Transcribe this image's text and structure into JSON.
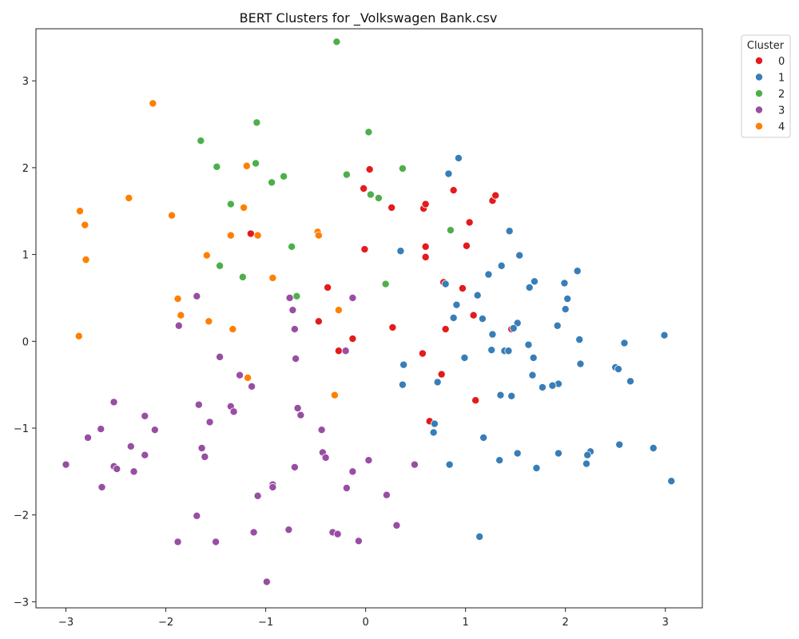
{
  "chart_data": {
    "type": "scatter",
    "title": "BERT Clusters for _Volkswagen Bank.csv",
    "xlabel": "",
    "ylabel": "",
    "xlim": [
      -3.3,
      3.37
    ],
    "ylim": [
      -3.07,
      3.6
    ],
    "xticks": [
      -3,
      -2,
      -1,
      0,
      1,
      2,
      3
    ],
    "yticks": [
      -3,
      -2,
      -1,
      0,
      1,
      2,
      3
    ],
    "tick_labels_x": [
      "−3",
      "−2",
      "−1",
      "0",
      "1",
      "2",
      "3"
    ],
    "tick_labels_y": [
      "−3",
      "−2",
      "−1",
      "0",
      "1",
      "2",
      "3"
    ],
    "grid": false,
    "legend": {
      "title": "Cluster",
      "placement": "outside-top-right"
    },
    "series": [
      {
        "name": "0",
        "color": "#e41a1c",
        "points": [
          [
            0.04,
            1.98
          ],
          [
            -0.02,
            1.76
          ],
          [
            0.26,
            1.54
          ],
          [
            0.58,
            1.53
          ],
          [
            0.6,
            1.58
          ],
          [
            0.88,
            1.74
          ],
          [
            1.27,
            1.62
          ],
          [
            1.3,
            1.68
          ],
          [
            1.04,
            1.37
          ],
          [
            0.6,
            1.09
          ],
          [
            0.6,
            0.97
          ],
          [
            1.01,
            1.1
          ],
          [
            -0.01,
            1.06
          ],
          [
            -1.15,
            1.24
          ],
          [
            -0.38,
            0.62
          ],
          [
            0.78,
            0.68
          ],
          [
            0.97,
            0.61
          ],
          [
            1.08,
            0.3
          ],
          [
            -0.47,
            0.23
          ],
          [
            0.27,
            0.16
          ],
          [
            0.8,
            0.14
          ],
          [
            1.46,
            0.14
          ],
          [
            -0.13,
            0.03
          ],
          [
            -0.27,
            -0.11
          ],
          [
            0.57,
            -0.14
          ],
          [
            0.76,
            -0.38
          ],
          [
            1.1,
            -0.68
          ],
          [
            0.64,
            -0.92
          ]
        ]
      },
      {
        "name": "1",
        "color": "#377eb8",
        "points": [
          [
            0.93,
            2.11
          ],
          [
            0.83,
            1.93
          ],
          [
            1.44,
            1.27
          ],
          [
            0.35,
            1.04
          ],
          [
            1.54,
            0.99
          ],
          [
            1.36,
            0.87
          ],
          [
            1.23,
            0.77
          ],
          [
            2.12,
            0.81
          ],
          [
            1.69,
            0.69
          ],
          [
            1.99,
            0.67
          ],
          [
            1.64,
            0.62
          ],
          [
            0.8,
            0.66
          ],
          [
            1.12,
            0.53
          ],
          [
            2.02,
            0.49
          ],
          [
            0.91,
            0.42
          ],
          [
            2.0,
            0.37
          ],
          [
            0.88,
            0.27
          ],
          [
            1.17,
            0.26
          ],
          [
            1.52,
            0.21
          ],
          [
            1.92,
            0.18
          ],
          [
            1.48,
            0.15
          ],
          [
            1.27,
            0.08
          ],
          [
            2.14,
            0.02
          ],
          [
            2.99,
            0.07
          ],
          [
            2.59,
            -0.02
          ],
          [
            1.63,
            -0.04
          ],
          [
            1.26,
            -0.1
          ],
          [
            1.39,
            -0.11
          ],
          [
            1.43,
            -0.11
          ],
          [
            0.99,
            -0.19
          ],
          [
            1.68,
            -0.19
          ],
          [
            2.15,
            -0.26
          ],
          [
            0.38,
            -0.27
          ],
          [
            2.5,
            -0.3
          ],
          [
            2.53,
            -0.32
          ],
          [
            1.67,
            -0.39
          ],
          [
            2.65,
            -0.46
          ],
          [
            0.72,
            -0.47
          ],
          [
            1.93,
            -0.49
          ],
          [
            1.87,
            -0.51
          ],
          [
            1.77,
            -0.53
          ],
          [
            0.37,
            -0.5
          ],
          [
            1.35,
            -0.62
          ],
          [
            1.46,
            -0.63
          ],
          [
            0.69,
            -0.95
          ],
          [
            0.68,
            -1.05
          ],
          [
            1.18,
            -1.11
          ],
          [
            2.54,
            -1.19
          ],
          [
            2.88,
            -1.23
          ],
          [
            2.25,
            -1.27
          ],
          [
            1.52,
            -1.29
          ],
          [
            1.93,
            -1.29
          ],
          [
            2.22,
            -1.31
          ],
          [
            1.34,
            -1.37
          ],
          [
            0.84,
            -1.42
          ],
          [
            2.21,
            -1.41
          ],
          [
            1.71,
            -1.46
          ],
          [
            3.06,
            -1.61
          ],
          [
            1.14,
            -2.25
          ]
        ]
      },
      {
        "name": "2",
        "color": "#4daf4a",
        "points": [
          [
            -0.29,
            3.45
          ],
          [
            -1.09,
            2.52
          ],
          [
            0.03,
            2.41
          ],
          [
            -1.65,
            2.31
          ],
          [
            -1.1,
            2.05
          ],
          [
            -1.49,
            2.01
          ],
          [
            0.37,
            1.99
          ],
          [
            -0.19,
            1.92
          ],
          [
            -0.82,
            1.9
          ],
          [
            -0.94,
            1.83
          ],
          [
            0.05,
            1.69
          ],
          [
            0.13,
            1.65
          ],
          [
            -1.35,
            1.58
          ],
          [
            0.85,
            1.28
          ],
          [
            -0.74,
            1.09
          ],
          [
            -1.46,
            0.87
          ],
          [
            -1.23,
            0.74
          ],
          [
            0.2,
            0.66
          ],
          [
            -0.69,
            0.52
          ]
        ]
      },
      {
        "name": "3",
        "color": "#984ea3",
        "points": [
          [
            -1.69,
            0.52
          ],
          [
            -0.76,
            0.5
          ],
          [
            -0.13,
            0.5
          ],
          [
            -0.73,
            0.36
          ],
          [
            -1.87,
            0.18
          ],
          [
            -0.71,
            0.14
          ],
          [
            -0.2,
            -0.11
          ],
          [
            -1.46,
            -0.18
          ],
          [
            -0.7,
            -0.2
          ],
          [
            -1.26,
            -0.39
          ],
          [
            -1.14,
            -0.52
          ],
          [
            -2.52,
            -0.7
          ],
          [
            -1.67,
            -0.73
          ],
          [
            -1.35,
            -0.75
          ],
          [
            -0.68,
            -0.77
          ],
          [
            -1.32,
            -0.81
          ],
          [
            -0.65,
            -0.85
          ],
          [
            -2.21,
            -0.86
          ],
          [
            -1.56,
            -0.93
          ],
          [
            -2.65,
            -1.01
          ],
          [
            -0.44,
            -1.02
          ],
          [
            -2.11,
            -1.02
          ],
          [
            -2.78,
            -1.11
          ],
          [
            -2.35,
            -1.21
          ],
          [
            -1.64,
            -1.23
          ],
          [
            -0.43,
            -1.28
          ],
          [
            -2.21,
            -1.31
          ],
          [
            -1.61,
            -1.33
          ],
          [
            -0.4,
            -1.34
          ],
          [
            0.03,
            -1.37
          ],
          [
            -3.0,
            -1.42
          ],
          [
            -2.52,
            -1.44
          ],
          [
            -2.49,
            -1.47
          ],
          [
            0.49,
            -1.42
          ],
          [
            -0.71,
            -1.45
          ],
          [
            -2.32,
            -1.5
          ],
          [
            -0.13,
            -1.5
          ],
          [
            -0.93,
            -1.65
          ],
          [
            -0.93,
            -1.68
          ],
          [
            -2.64,
            -1.68
          ],
          [
            -0.19,
            -1.69
          ],
          [
            0.21,
            -1.77
          ],
          [
            -1.08,
            -1.78
          ],
          [
            -1.69,
            -2.01
          ],
          [
            0.31,
            -2.12
          ],
          [
            -0.77,
            -2.17
          ],
          [
            -1.12,
            -2.2
          ],
          [
            -0.33,
            -2.2
          ],
          [
            -0.28,
            -2.22
          ],
          [
            -1.88,
            -2.31
          ],
          [
            -1.5,
            -2.31
          ],
          [
            -0.07,
            -2.3
          ],
          [
            -0.99,
            -2.77
          ]
        ]
      },
      {
        "name": "4",
        "color": "#ff7f00",
        "points": [
          [
            -2.13,
            2.74
          ],
          [
            -1.19,
            2.02
          ],
          [
            -2.37,
            1.65
          ],
          [
            -1.22,
            1.54
          ],
          [
            -2.86,
            1.5
          ],
          [
            -1.94,
            1.45
          ],
          [
            -2.81,
            1.34
          ],
          [
            -0.48,
            1.26
          ],
          [
            -1.35,
            1.22
          ],
          [
            -1.08,
            1.22
          ],
          [
            -0.47,
            1.22
          ],
          [
            -1.59,
            0.99
          ],
          [
            -2.8,
            0.94
          ],
          [
            -0.93,
            0.73
          ],
          [
            -1.88,
            0.49
          ],
          [
            -0.27,
            0.36
          ],
          [
            -1.85,
            0.3
          ],
          [
            -1.57,
            0.23
          ],
          [
            -1.33,
            0.14
          ],
          [
            -2.87,
            0.06
          ],
          [
            -1.18,
            -0.42
          ],
          [
            -0.31,
            -0.62
          ]
        ]
      }
    ]
  }
}
